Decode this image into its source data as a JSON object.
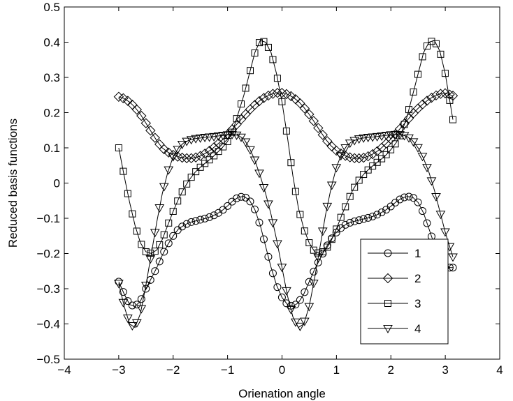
{
  "chart_data": {
    "type": "line",
    "title": "",
    "xlabel": "Orienation angle",
    "ylabel": "Reduced basis functions",
    "xlim": [
      -4,
      4
    ],
    "ylim": [
      -0.5,
      0.5
    ],
    "xticks": [
      -4,
      -3,
      -2,
      -1,
      0,
      1,
      2,
      3,
      4
    ],
    "xtick_labels": [
      "−4",
      "−3",
      "−2",
      "−1",
      "0",
      "1",
      "2",
      "3",
      "4"
    ],
    "yticks": [
      -0.5,
      -0.4,
      -0.3,
      -0.2,
      -0.1,
      0,
      0.1,
      0.2,
      0.3,
      0.4,
      0.5
    ],
    "ytick_labels": [
      "−0.5",
      "−0.4",
      "−0.3",
      "−0.2",
      "−0.1",
      "0",
      "0.1",
      "0.2",
      "0.3",
      "0.4",
      "0.5"
    ],
    "grid": false,
    "legend_position": "lower-right",
    "line_color": "#000000",
    "x_range": [
      -3.0,
      3.14
    ],
    "x_step": 0.0833,
    "series": [
      {
        "name": "1",
        "marker": "circle",
        "points": [
          [
            -3.0,
            -0.28
          ],
          [
            -2.9,
            -0.315
          ],
          [
            -2.8,
            -0.345
          ],
          [
            -2.7,
            -0.35
          ],
          [
            -2.6,
            -0.335
          ],
          [
            -2.5,
            -0.3
          ],
          [
            -2.4,
            -0.27
          ],
          [
            -2.3,
            -0.24
          ],
          [
            -2.2,
            -0.205
          ],
          [
            -2.1,
            -0.175
          ],
          [
            -2.0,
            -0.15
          ],
          [
            -1.9,
            -0.13
          ],
          [
            -1.8,
            -0.12
          ],
          [
            -1.7,
            -0.112
          ],
          [
            -1.6,
            -0.108
          ],
          [
            -1.5,
            -0.104
          ],
          [
            -1.4,
            -0.1
          ],
          [
            -1.3,
            -0.095
          ],
          [
            -1.2,
            -0.088
          ],
          [
            -1.1,
            -0.078
          ],
          [
            -1.0,
            -0.065
          ],
          [
            -0.9,
            -0.05
          ],
          [
            -0.8,
            -0.04
          ],
          [
            -0.7,
            -0.038
          ],
          [
            -0.6,
            -0.048
          ],
          [
            -0.5,
            -0.075
          ],
          [
            -0.4,
            -0.12
          ],
          [
            -0.3,
            -0.18
          ],
          [
            -0.2,
            -0.24
          ],
          [
            -0.1,
            -0.29
          ],
          [
            0.0,
            -0.325
          ],
          [
            0.1,
            -0.345
          ],
          [
            0.2,
            -0.35
          ],
          [
            0.3,
            -0.34
          ],
          [
            0.4,
            -0.315
          ],
          [
            0.5,
            -0.28
          ],
          [
            0.6,
            -0.245
          ],
          [
            0.7,
            -0.215
          ],
          [
            0.8,
            -0.185
          ],
          [
            0.9,
            -0.16
          ],
          [
            1.0,
            -0.14
          ],
          [
            1.1,
            -0.125
          ],
          [
            1.2,
            -0.115
          ],
          [
            1.3,
            -0.11
          ],
          [
            1.4,
            -0.106
          ],
          [
            1.5,
            -0.102
          ],
          [
            1.6,
            -0.098
          ],
          [
            1.7,
            -0.093
          ],
          [
            1.8,
            -0.086
          ],
          [
            1.9,
            -0.077
          ],
          [
            2.0,
            -0.066
          ],
          [
            2.1,
            -0.053
          ],
          [
            2.2,
            -0.043
          ],
          [
            2.3,
            -0.038
          ],
          [
            2.4,
            -0.04
          ],
          [
            2.5,
            -0.055
          ],
          [
            2.6,
            -0.085
          ],
          [
            2.7,
            -0.13
          ],
          [
            2.8,
            -0.175
          ],
          [
            2.9,
            -0.215
          ],
          [
            3.0,
            -0.24
          ],
          [
            3.14,
            -0.24
          ]
        ]
      },
      {
        "name": "2",
        "marker": "diamond",
        "points": [
          [
            -3.0,
            0.245
          ],
          [
            -2.9,
            0.24
          ],
          [
            -2.8,
            0.23
          ],
          [
            -2.7,
            0.215
          ],
          [
            -2.6,
            0.195
          ],
          [
            -2.5,
            0.17
          ],
          [
            -2.4,
            0.145
          ],
          [
            -2.3,
            0.12
          ],
          [
            -2.2,
            0.1
          ],
          [
            -2.1,
            0.088
          ],
          [
            -2.0,
            0.08
          ],
          [
            -1.9,
            0.074
          ],
          [
            -1.8,
            0.071
          ],
          [
            -1.7,
            0.07
          ],
          [
            -1.6,
            0.072
          ],
          [
            -1.5,
            0.077
          ],
          [
            -1.4,
            0.085
          ],
          [
            -1.3,
            0.095
          ],
          [
            -1.2,
            0.108
          ],
          [
            -1.1,
            0.122
          ],
          [
            -1.0,
            0.138
          ],
          [
            -0.9,
            0.155
          ],
          [
            -0.8,
            0.172
          ],
          [
            -0.7,
            0.19
          ],
          [
            -0.6,
            0.207
          ],
          [
            -0.5,
            0.222
          ],
          [
            -0.4,
            0.235
          ],
          [
            -0.3,
            0.245
          ],
          [
            -0.2,
            0.252
          ],
          [
            -0.1,
            0.256
          ],
          [
            0.0,
            0.256
          ],
          [
            0.1,
            0.252
          ],
          [
            0.2,
            0.244
          ],
          [
            0.3,
            0.232
          ],
          [
            0.4,
            0.215
          ],
          [
            0.5,
            0.195
          ],
          [
            0.6,
            0.172
          ],
          [
            0.7,
            0.148
          ],
          [
            0.8,
            0.125
          ],
          [
            0.9,
            0.106
          ],
          [
            1.0,
            0.092
          ],
          [
            1.1,
            0.082
          ],
          [
            1.2,
            0.075
          ],
          [
            1.3,
            0.071
          ],
          [
            1.4,
            0.07
          ],
          [
            1.5,
            0.072
          ],
          [
            1.6,
            0.077
          ],
          [
            1.7,
            0.085
          ],
          [
            1.8,
            0.096
          ],
          [
            1.9,
            0.11
          ],
          [
            2.0,
            0.125
          ],
          [
            2.1,
            0.142
          ],
          [
            2.2,
            0.16
          ],
          [
            2.3,
            0.178
          ],
          [
            2.4,
            0.196
          ],
          [
            2.5,
            0.212
          ],
          [
            2.6,
            0.226
          ],
          [
            2.7,
            0.238
          ],
          [
            2.8,
            0.247
          ],
          [
            2.9,
            0.253
          ],
          [
            3.0,
            0.255
          ],
          [
            3.14,
            0.248
          ]
        ]
      },
      {
        "name": "3",
        "marker": "square",
        "points": [
          [
            -3.0,
            0.1
          ],
          [
            -2.9,
            0.02
          ],
          [
            -2.8,
            -0.055
          ],
          [
            -2.7,
            -0.12
          ],
          [
            -2.6,
            -0.17
          ],
          [
            -2.5,
            -0.195
          ],
          [
            -2.4,
            -0.2
          ],
          [
            -2.3,
            -0.19
          ],
          [
            -2.2,
            -0.16
          ],
          [
            -2.1,
            -0.12
          ],
          [
            -2.0,
            -0.08
          ],
          [
            -1.9,
            -0.045
          ],
          [
            -1.8,
            -0.015
          ],
          [
            -1.7,
            0.01
          ],
          [
            -1.6,
            0.03
          ],
          [
            -1.5,
            0.045
          ],
          [
            -1.4,
            0.058
          ],
          [
            -1.3,
            0.07
          ],
          [
            -1.2,
            0.085
          ],
          [
            -1.1,
            0.1
          ],
          [
            -1.0,
            0.118
          ],
          [
            -0.9,
            0.15
          ],
          [
            -0.8,
            0.2
          ],
          [
            -0.7,
            0.25
          ],
          [
            -0.6,
            0.31
          ],
          [
            -0.5,
            0.37
          ],
          [
            -0.4,
            0.405
          ],
          [
            -0.3,
            0.4
          ],
          [
            -0.2,
            0.37
          ],
          [
            -0.1,
            0.31
          ],
          [
            0.0,
            0.23
          ],
          [
            0.1,
            0.13
          ],
          [
            0.2,
            0.02
          ],
          [
            0.3,
            -0.07
          ],
          [
            0.4,
            -0.13
          ],
          [
            0.5,
            -0.17
          ],
          [
            0.6,
            -0.195
          ],
          [
            0.7,
            -0.2
          ],
          [
            0.8,
            -0.19
          ],
          [
            0.9,
            -0.165
          ],
          [
            1.0,
            -0.13
          ],
          [
            1.1,
            -0.09
          ],
          [
            1.2,
            -0.055
          ],
          [
            1.3,
            -0.02
          ],
          [
            1.4,
            0.005
          ],
          [
            1.5,
            0.025
          ],
          [
            1.6,
            0.04
          ],
          [
            1.7,
            0.053
          ],
          [
            1.8,
            0.065
          ],
          [
            1.9,
            0.078
          ],
          [
            2.0,
            0.095
          ],
          [
            2.1,
            0.115
          ],
          [
            2.2,
            0.145
          ],
          [
            2.3,
            0.19
          ],
          [
            2.4,
            0.25
          ],
          [
            2.5,
            0.31
          ],
          [
            2.6,
            0.37
          ],
          [
            2.7,
            0.4
          ],
          [
            2.8,
            0.405
          ],
          [
            2.9,
            0.375
          ],
          [
            3.0,
            0.31
          ],
          [
            3.14,
            0.18
          ]
        ]
      },
      {
        "name": "4",
        "marker": "triangle-down",
        "points": [
          [
            -3.0,
            -0.285
          ],
          [
            -2.9,
            -0.35
          ],
          [
            -2.8,
            -0.4
          ],
          [
            -2.7,
            -0.41
          ],
          [
            -2.6,
            -0.37
          ],
          [
            -2.5,
            -0.29
          ],
          [
            -2.4,
            -0.2
          ],
          [
            -2.3,
            -0.11
          ],
          [
            -2.2,
            -0.03
          ],
          [
            -2.1,
            0.03
          ],
          [
            -2.0,
            0.075
          ],
          [
            -1.9,
            0.1
          ],
          [
            -1.8,
            0.115
          ],
          [
            -1.7,
            0.122
          ],
          [
            -1.6,
            0.126
          ],
          [
            -1.5,
            0.128
          ],
          [
            -1.4,
            0.13
          ],
          [
            -1.3,
            0.131
          ],
          [
            -1.2,
            0.133
          ],
          [
            -1.1,
            0.135
          ],
          [
            -1.0,
            0.137
          ],
          [
            -0.9,
            0.138
          ],
          [
            -0.8,
            0.135
          ],
          [
            -0.7,
            0.125
          ],
          [
            -0.6,
            0.1
          ],
          [
            -0.5,
            0.065
          ],
          [
            -0.4,
            0.02
          ],
          [
            -0.3,
            -0.03
          ],
          [
            -0.2,
            -0.09
          ],
          [
            -0.1,
            -0.16
          ],
          [
            0.0,
            -0.24
          ],
          [
            0.1,
            -0.32
          ],
          [
            0.2,
            -0.38
          ],
          [
            0.3,
            -0.41
          ],
          [
            0.4,
            -0.4
          ],
          [
            0.5,
            -0.35
          ],
          [
            0.6,
            -0.27
          ],
          [
            0.7,
            -0.18
          ],
          [
            0.8,
            -0.09
          ],
          [
            0.9,
            -0.015
          ],
          [
            1.0,
            0.045
          ],
          [
            1.1,
            0.085
          ],
          [
            1.2,
            0.108
          ],
          [
            1.3,
            0.119
          ],
          [
            1.4,
            0.125
          ],
          [
            1.5,
            0.128
          ],
          [
            1.6,
            0.13
          ],
          [
            1.7,
            0.131
          ],
          [
            1.8,
            0.133
          ],
          [
            1.9,
            0.135
          ],
          [
            2.0,
            0.137
          ],
          [
            2.1,
            0.138
          ],
          [
            2.2,
            0.137
          ],
          [
            2.3,
            0.132
          ],
          [
            2.4,
            0.12
          ],
          [
            2.5,
            0.1
          ],
          [
            2.6,
            0.07
          ],
          [
            2.7,
            0.03
          ],
          [
            2.8,
            -0.02
          ],
          [
            2.9,
            -0.08
          ],
          [
            3.0,
            -0.14
          ],
          [
            3.14,
            -0.21
          ]
        ]
      }
    ]
  }
}
